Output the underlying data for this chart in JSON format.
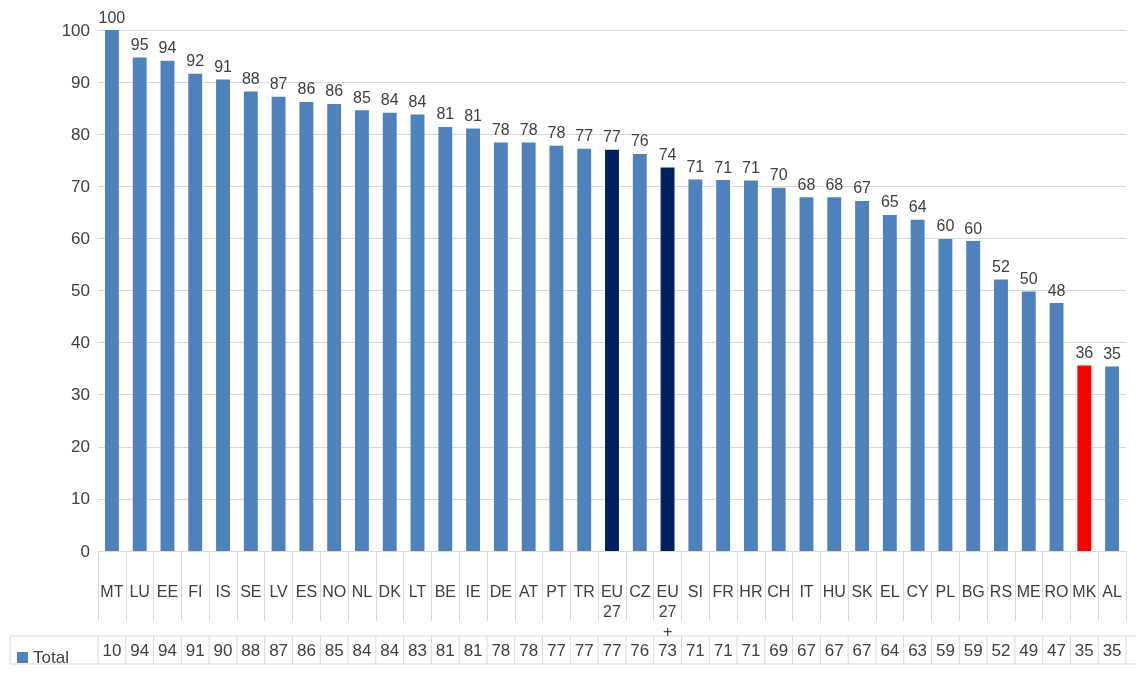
{
  "chart_data": {
    "type": "bar",
    "categories": [
      "MT",
      "LU",
      "EE",
      "FI",
      "IS",
      "SE",
      "LV",
      "ES",
      "NO",
      "NL",
      "DK",
      "LT",
      "BE",
      "IE",
      "DE",
      "AT",
      "PT",
      "TR",
      "EU27",
      "CZ",
      "EU27+",
      "SI",
      "FR",
      "HR",
      "CH",
      "IT",
      "HU",
      "SK",
      "EL",
      "CY",
      "PL",
      "BG",
      "RS",
      "ME",
      "RO",
      "MK",
      "AL"
    ],
    "series": [
      {
        "name": "Total",
        "color": "#4f81bd",
        "values": [
          100,
          94.7,
          94.1,
          91.6,
          90.5,
          88.2,
          87.2,
          86.2,
          85.8,
          84.6,
          84.1,
          83.8,
          81.4,
          81.1,
          78.4,
          78.4,
          77.8,
          77.2,
          77.0,
          76.2,
          73.6,
          71.3,
          71.2,
          71.1,
          69.7,
          67.9,
          67.9,
          67.2,
          64.5,
          63.6,
          59.9,
          59.5,
          52.1,
          49.8,
          47.6,
          35.6,
          35.4
        ],
        "colors": [
          "#4f81bd",
          "#4f81bd",
          "#4f81bd",
          "#4f81bd",
          "#4f81bd",
          "#4f81bd",
          "#4f81bd",
          "#4f81bd",
          "#4f81bd",
          "#4f81bd",
          "#4f81bd",
          "#4f81bd",
          "#4f81bd",
          "#4f81bd",
          "#4f81bd",
          "#4f81bd",
          "#4f81bd",
          "#4f81bd",
          "#002060",
          "#4f81bd",
          "#002060",
          "#4f81bd",
          "#4f81bd",
          "#4f81bd",
          "#4f81bd",
          "#4f81bd",
          "#4f81bd",
          "#4f81bd",
          "#4f81bd",
          "#4f81bd",
          "#4f81bd",
          "#4f81bd",
          "#4f81bd",
          "#4f81bd",
          "#4f81bd",
          "#ff0000",
          "#4f81bd"
        ],
        "value_labels": [
          "100",
          "95",
          "94",
          "92",
          "91",
          "88",
          "87",
          "86",
          "86",
          "85",
          "84",
          "84",
          "81",
          "81",
          "78",
          "78",
          "78",
          "77",
          "77",
          "76",
          "74",
          "71",
          "71",
          "71",
          "70",
          "68",
          "68",
          "67",
          "65",
          "64",
          "60",
          "60",
          "52",
          "50",
          "48",
          "36",
          "35"
        ]
      }
    ],
    "annotations": [
      "10",
      "94",
      "94",
      "91",
      "90",
      "88",
      "87",
      "86",
      "85",
      "84",
      "84",
      "83",
      "81",
      "81",
      "78",
      "78",
      "77",
      "77",
      "77",
      "76",
      "73",
      "71",
      "71",
      "71",
      "69",
      "67",
      "67",
      "67",
      "64",
      "63",
      "59",
      "59",
      "52",
      "49",
      "47",
      "35",
      "35"
    ],
    "ylim": [
      0,
      100
    ],
    "yticks": [
      0,
      10,
      20,
      30,
      40,
      50,
      60,
      70,
      80,
      90,
      100
    ],
    "grid": "y",
    "legend": "bottom left"
  }
}
